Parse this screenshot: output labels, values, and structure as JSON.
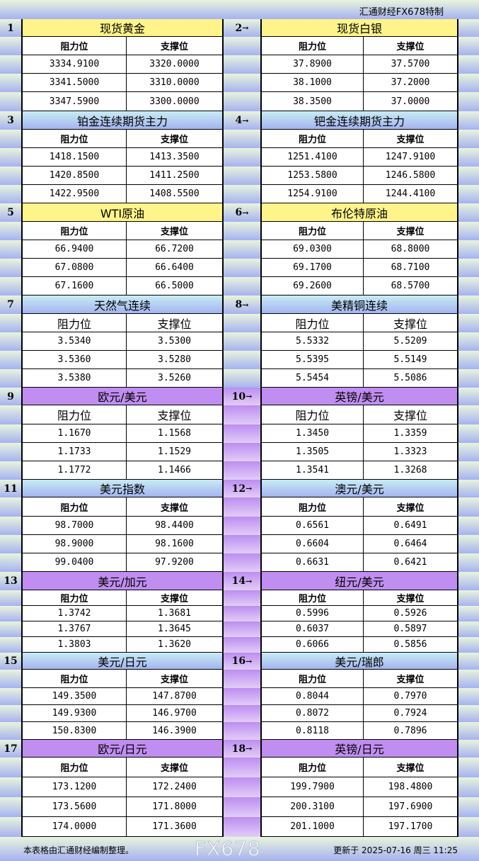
{
  "header": {
    "brand": "汇通财经FX678特制"
  },
  "columns": {
    "resistance": "阻力位",
    "support": "支撑位"
  },
  "colors": {
    "yellow": "#fff48a",
    "blue": "#b4ccf2",
    "purple": "#c08ef0",
    "arrow": "→"
  },
  "blocks": [
    {
      "num": "1",
      "title": "现货黄金",
      "style": "yellow",
      "resistance": [
        "3334.9100",
        "3341.5000",
        "3347.5900"
      ],
      "support": [
        "3320.0000",
        "3310.0000",
        "3300.0000"
      ]
    },
    {
      "num": "2",
      "title": "现货白银",
      "style": "yellow",
      "resistance": [
        "37.8900",
        "38.1000",
        "38.3500"
      ],
      "support": [
        "37.5700",
        "37.2000",
        "37.0000"
      ]
    },
    {
      "num": "3",
      "title": "铂金连续期货主力",
      "style": "blue",
      "resistance": [
        "1418.1500",
        "1420.8500",
        "1422.9500"
      ],
      "support": [
        "1413.3500",
        "1411.2500",
        "1408.5500"
      ]
    },
    {
      "num": "4",
      "title": "钯金连续期货主力",
      "style": "blue",
      "resistance": [
        "1251.4100",
        "1253.5800",
        "1254.9100"
      ],
      "support": [
        "1247.9100",
        "1246.5800",
        "1244.4100"
      ]
    },
    {
      "num": "5",
      "title": "WTI原油",
      "style": "yellow",
      "resistance": [
        "66.9400",
        "67.0800",
        "67.1600"
      ],
      "support": [
        "66.7200",
        "66.6400",
        "66.5000"
      ]
    },
    {
      "num": "6",
      "title": "布伦特原油",
      "style": "yellow",
      "resistance": [
        "69.0300",
        "69.1700",
        "69.2600"
      ],
      "support": [
        "68.8000",
        "68.7100",
        "68.5700"
      ]
    },
    {
      "num": "7",
      "title": "天然气连续",
      "style": "blue",
      "resistance": [
        "3.5340",
        "3.5360",
        "3.5380"
      ],
      "support": [
        "3.5300",
        "3.5280",
        "3.5260"
      ]
    },
    {
      "num": "8",
      "title": "美精铜连续",
      "style": "blue",
      "resistance": [
        "5.5332",
        "5.5395",
        "5.5454"
      ],
      "support": [
        "5.5209",
        "5.5149",
        "5.5086"
      ]
    },
    {
      "num": "9",
      "title": "欧元/美元",
      "style": "violet",
      "resistance": [
        "1.1670",
        "1.1733",
        "1.1772"
      ],
      "support": [
        "1.1568",
        "1.1529",
        "1.1466"
      ]
    },
    {
      "num": "10",
      "title": "英镑/美元",
      "style": "violet",
      "resistance": [
        "1.3450",
        "1.3505",
        "1.3541"
      ],
      "support": [
        "1.3359",
        "1.3323",
        "1.3268"
      ]
    },
    {
      "num": "11",
      "title": "美元指数",
      "style": "blue",
      "resistance": [
        "98.7000",
        "98.9000",
        "99.0400"
      ],
      "support": [
        "98.4400",
        "98.1600",
        "97.9200"
      ]
    },
    {
      "num": "12",
      "title": "澳元/美元",
      "style": "blue",
      "resistance": [
        "0.6561",
        "0.6604",
        "0.6631"
      ],
      "support": [
        "0.6491",
        "0.6464",
        "0.6421"
      ]
    },
    {
      "num": "13",
      "title": "美元/加元",
      "style": "violet",
      "resistance": [
        "1.3742",
        "1.3767",
        "1.3803"
      ],
      "support": [
        "1.3681",
        "1.3645",
        "1.3620"
      ]
    },
    {
      "num": "14",
      "title": "纽元/美元",
      "style": "violet",
      "resistance": [
        "0.5996",
        "0.6037",
        "0.6066"
      ],
      "support": [
        "0.5926",
        "0.5897",
        "0.5856"
      ]
    },
    {
      "num": "15",
      "title": "美元/日元",
      "style": "blue",
      "resistance": [
        "149.3500",
        "149.9300",
        "150.8300"
      ],
      "support": [
        "147.8700",
        "146.9700",
        "146.3900"
      ]
    },
    {
      "num": "16",
      "title": "美元/瑞郎",
      "style": "blue",
      "resistance": [
        "0.8044",
        "0.8072",
        "0.8118"
      ],
      "support": [
        "0.7970",
        "0.7924",
        "0.7896"
      ]
    },
    {
      "num": "17",
      "title": "欧元/日元",
      "style": "violet",
      "resistance": [
        "173.1200",
        "173.5600",
        "174.0000"
      ],
      "support": [
        "172.2400",
        "171.8000",
        "171.3600"
      ]
    },
    {
      "num": "18",
      "title": "英镑/日元",
      "style": "violet",
      "resistance": [
        "199.7900",
        "200.3100",
        "201.1000"
      ],
      "support": [
        "198.4800",
        "197.6900",
        "197.1700"
      ]
    }
  ],
  "footer": {
    "note": "本表格由汇通财经编制整理。",
    "updated": "更新于 2025-07-16 周三 11:25"
  },
  "watermark": "FX678"
}
